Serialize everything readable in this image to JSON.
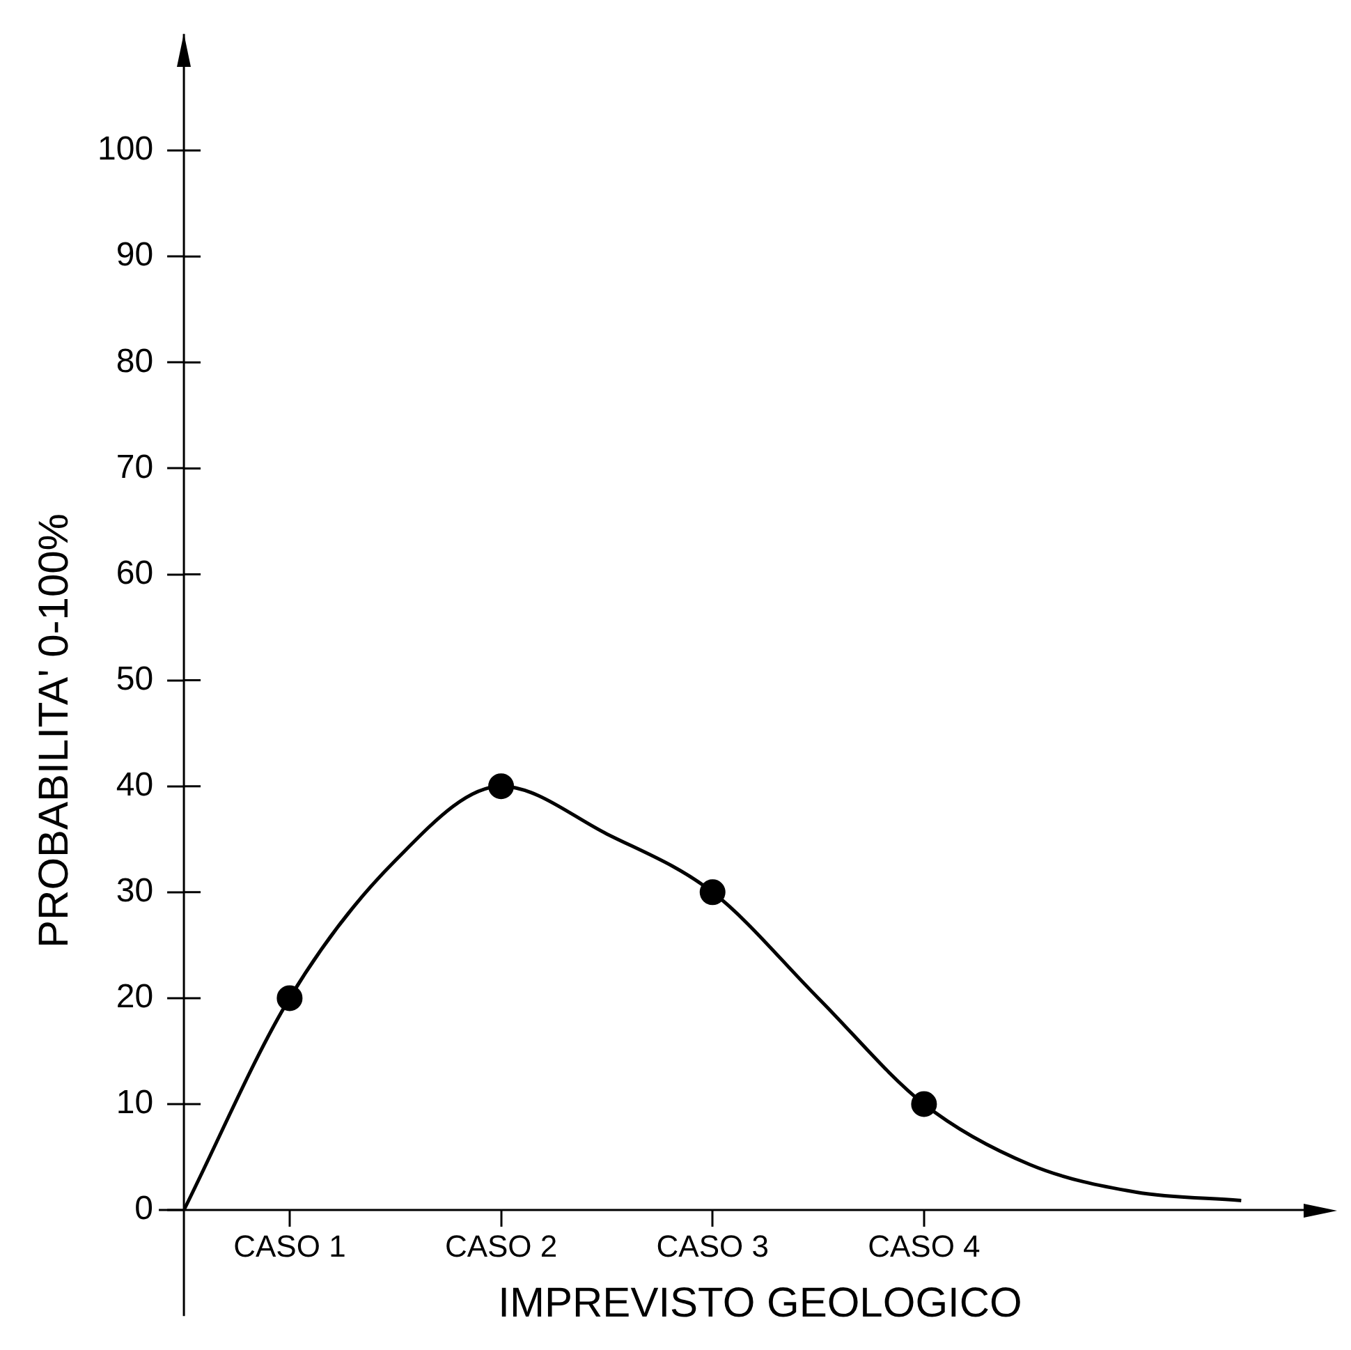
{
  "chart_data": {
    "type": "line",
    "xlabel": "IMPREVISTO GEOLOGICO",
    "ylabel": "PROBABILITA' 0-100%",
    "categories": [
      null,
      "CASO 1",
      null,
      "CASO 2",
      null,
      "CASO 3",
      null,
      "CASO 4",
      null,
      null,
      null
    ],
    "ylim": [
      -10,
      111
    ],
    "yticks": [
      0,
      10,
      20,
      30,
      40,
      50,
      60,
      70,
      80,
      90,
      100
    ],
    "legend": false,
    "series": [
      {
        "color": "#000000",
        "marker": "none",
        "values": [
          0,
          20,
          33,
          40,
          35.5,
          30,
          20,
          10,
          4.3,
          1.7,
          0.9
        ]
      },
      {
        "type": "scatter",
        "color": "#000000",
        "marker": "circle",
        "x": [
          "CASO 1",
          "CASO 2",
          "CASO 3",
          "CASO 4"
        ],
        "values": [
          20,
          40,
          30,
          10
        ]
      }
    ]
  }
}
